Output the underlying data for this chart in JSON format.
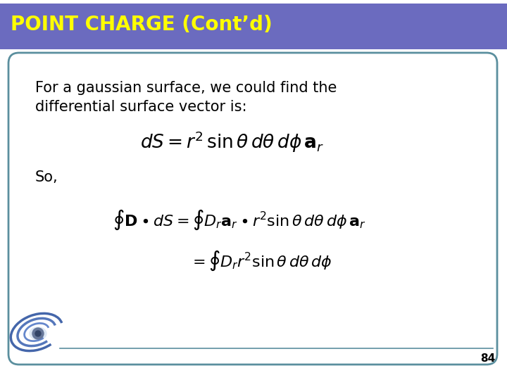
{
  "title": "POINT CHARGE (Cont’d)",
  "title_bg_color": "#6b6bbf",
  "title_text_color": "#ffff00",
  "slide_bg_color": "#ffffff",
  "content_bg_color": "#ffffff",
  "border_color": "#5b8f9e",
  "top_strip_color": "#ffffff",
  "line_color": "#ffffff",
  "body_line1": "For a gaussian surface, we could find the",
  "body_line2": "differential surface vector is:",
  "eq1": "$dS = r^2 \\sin\\theta d\\theta d\\phi {\\bf a}_r$",
  "so_text": "So,",
  "eq2": "$\\oint {\\bf D} \\bullet d{\\bf S} = \\oint D_r{\\bf a}_r \\bullet r^2 \\sin\\theta d\\theta d\\phi {\\bf a}_r$",
  "eq3": "$= \\oint D_r r^2 \\sin\\theta d\\theta d\\phi$",
  "page_number": "84",
  "title_fontsize": 20,
  "body_fontsize": 15,
  "eq1_fontsize": 19,
  "eq2_fontsize": 16,
  "eq3_fontsize": 16,
  "so_fontsize": 15,
  "page_fontsize": 11
}
